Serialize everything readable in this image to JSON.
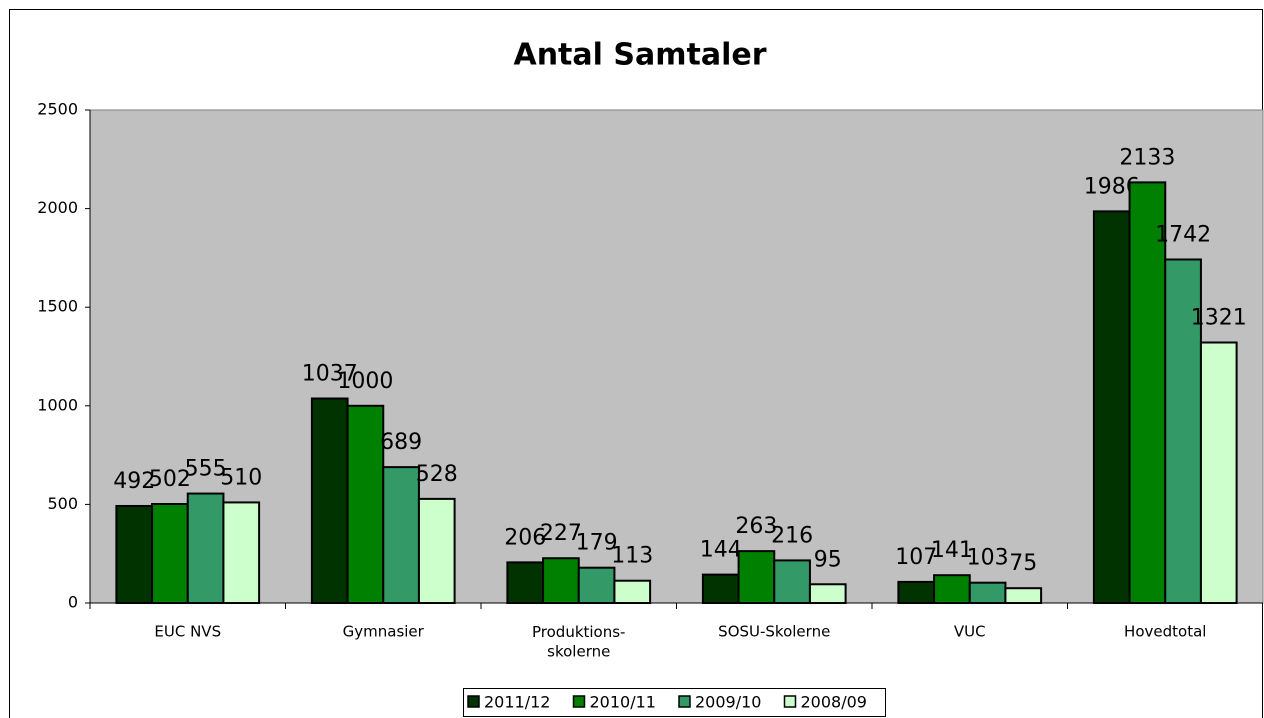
{
  "chart_data": {
    "type": "bar",
    "title": "Antal Samtaler",
    "categories": [
      "EUC NVS",
      "Gymnasier",
      "Produktions-\nskolerne",
      "SOSU-Skolerne",
      "VUC",
      "Hovedtotal"
    ],
    "series": [
      {
        "name": "2011/12",
        "color": "#003300",
        "values": [
          492,
          1037,
          206,
          144,
          107,
          1986
        ]
      },
      {
        "name": "2010/11",
        "color": "#008000",
        "values": [
          502,
          1000,
          227,
          263,
          141,
          2133
        ]
      },
      {
        "name": "2009/10",
        "color": "#339966",
        "values": [
          555,
          689,
          179,
          216,
          103,
          1742
        ]
      },
      {
        "name": "2008/09",
        "color": "#ccffcc",
        "values": [
          510,
          528,
          113,
          95,
          75,
          1321
        ]
      }
    ],
    "ylim": [
      0,
      2500
    ],
    "yticks": [
      0,
      500,
      1000,
      1500,
      2000,
      2500
    ],
    "grid": false,
    "legend": "bottom"
  }
}
